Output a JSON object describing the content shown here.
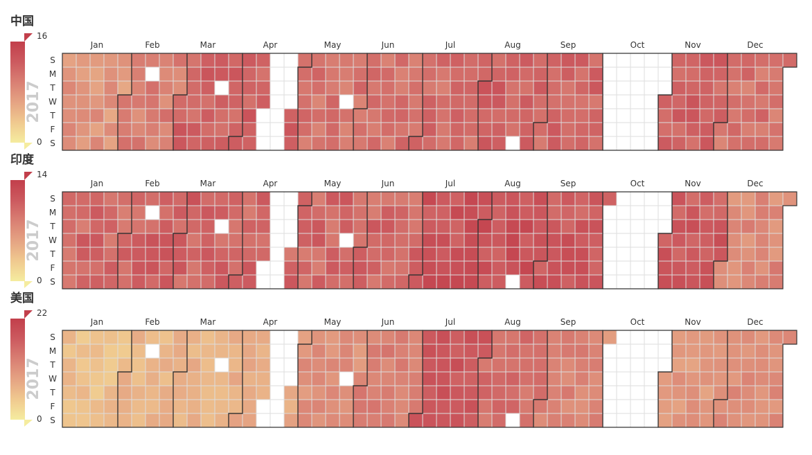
{
  "colors": {
    "low": "#f5ec9f",
    "high": "#c23f4b",
    "cell_border": "#dddddd",
    "month_border": "#333333",
    "empty": "#ffffff",
    "text": "#333333",
    "year_text": "#cccccc"
  },
  "month_labels": [
    "Jan",
    "Feb",
    "Mar",
    "Apr",
    "May",
    "Jun",
    "Jul",
    "Aug",
    "Sep",
    "Oct",
    "Nov",
    "Dec"
  ],
  "day_labels": [
    "S",
    "M",
    "T",
    "W",
    "T",
    "F",
    "S"
  ],
  "chart_data": [
    {
      "type": "heatmap",
      "layout": "calendar",
      "title": "中国",
      "year": "2017",
      "visual_map": {
        "min": 0,
        "max": 16,
        "min_label": "0",
        "max_label": "16"
      },
      "missing_dates": [
        "2017-02-13",
        "2017-03-21",
        "2017-04-13",
        "2017-04-14",
        "2017-04-15",
        "2017-04-16",
        "2017-04-17",
        "2017-04-18",
        "2017-04-19",
        "2017-04-20",
        "2017-04-21",
        "2017-04-22",
        "2017-04-23",
        "2017-04-24",
        "2017-04-25",
        "2017-04-26",
        "2017-05-24",
        "2017-08-19",
        "2017-10-08",
        "2017-10-09",
        "2017-10-10",
        "2017-10-11",
        "2017-10-12",
        "2017-10-13",
        "2017-10-14",
        "2017-10-15",
        "2017-10-16",
        "2017-10-17",
        "2017-10-18",
        "2017-10-19",
        "2017-10-20",
        "2017-10-21",
        "2017-10-22",
        "2017-10-23",
        "2017-10-24",
        "2017-10-25",
        "2017-10-26",
        "2017-10-27",
        "2017-10-28",
        "2017-10-29",
        "2017-10-30",
        "2017-10-31",
        "2017-10-07",
        "2017-10-06",
        "2017-10-05",
        "2017-10-04",
        "2017-10-03",
        "2017-10-02",
        "2017-10-01"
      ],
      "monthly_values": [
        7.5,
        9.5,
        12,
        12,
        10.5,
        10.5,
        11,
        12,
        11.5,
        8,
        12,
        10.5
      ]
    },
    {
      "type": "heatmap",
      "layout": "calendar",
      "title": "印度",
      "year": "2017",
      "visual_map": {
        "min": 0,
        "max": 14,
        "min_label": "0",
        "max_label": "14"
      },
      "missing_dates": [
        "2017-02-13",
        "2017-03-21",
        "2017-04-14",
        "2017-04-15",
        "2017-04-16",
        "2017-04-17",
        "2017-04-18",
        "2017-04-19",
        "2017-04-20",
        "2017-04-21",
        "2017-04-22",
        "2017-04-23",
        "2017-04-24",
        "2017-04-25",
        "2017-04-26",
        "2017-05-24",
        "2017-08-19",
        "2017-10-02",
        "2017-10-03",
        "2017-10-04",
        "2017-10-05",
        "2017-10-06",
        "2017-10-07",
        "2017-10-08",
        "2017-10-09",
        "2017-10-10",
        "2017-10-11",
        "2017-10-12",
        "2017-10-13",
        "2017-10-14",
        "2017-10-15",
        "2017-10-16",
        "2017-10-17",
        "2017-10-18",
        "2017-10-19",
        "2017-10-20",
        "2017-10-21",
        "2017-10-22",
        "2017-10-23",
        "2017-10-24",
        "2017-10-25",
        "2017-10-26",
        "2017-10-27",
        "2017-10-28",
        "2017-10-29",
        "2017-10-30",
        "2017-10-31"
      ],
      "monthly_values": [
        10,
        10.5,
        10.5,
        10,
        10,
        10,
        12,
        12,
        11,
        10,
        11,
        7.5
      ]
    },
    {
      "type": "heatmap",
      "layout": "calendar",
      "title": "美国",
      "year": "2017",
      "visual_map": {
        "min": 0,
        "max": 22,
        "min_label": "0",
        "max_label": "22"
      },
      "missing_dates": [
        "2017-02-13",
        "2017-03-21",
        "2017-04-14",
        "2017-04-15",
        "2017-04-16",
        "2017-04-17",
        "2017-04-18",
        "2017-04-19",
        "2017-04-20",
        "2017-04-21",
        "2017-04-22",
        "2017-04-23",
        "2017-04-24",
        "2017-04-25",
        "2017-04-26",
        "2017-05-24",
        "2017-08-19",
        "2017-10-02",
        "2017-10-03",
        "2017-10-04",
        "2017-10-05",
        "2017-10-06",
        "2017-10-07",
        "2017-10-08",
        "2017-10-09",
        "2017-10-10",
        "2017-10-11",
        "2017-10-12",
        "2017-10-13",
        "2017-10-14",
        "2017-10-15",
        "2017-10-16",
        "2017-10-17",
        "2017-10-18",
        "2017-10-19",
        "2017-10-20",
        "2017-10-21",
        "2017-10-22",
        "2017-10-23",
        "2017-10-24",
        "2017-10-25",
        "2017-10-26",
        "2017-10-27",
        "2017-10-28",
        "2017-10-29",
        "2017-10-30",
        "2017-10-31"
      ],
      "monthly_values": [
        5.5,
        6.5,
        7,
        8,
        11,
        13,
        18,
        15,
        12.5,
        9,
        10,
        11.5
      ]
    }
  ]
}
